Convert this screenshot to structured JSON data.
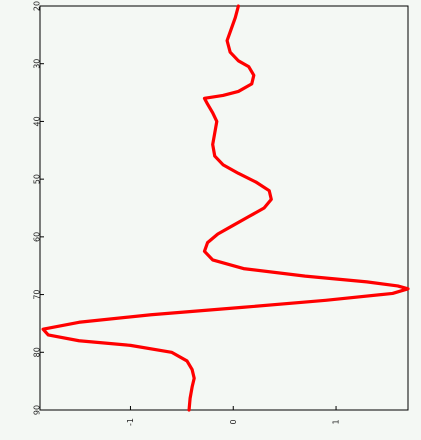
{
  "chart_data": {
    "type": "line",
    "title": "",
    "xlabel": "",
    "ylabel": "",
    "xlim": [
      -1.88,
      1.7
    ],
    "ylim": [
      20,
      90
    ],
    "y_inverted": true,
    "grid": false,
    "x_ticks": [
      -1,
      0,
      1
    ],
    "x_tick_labels": [
      "-1",
      "0",
      "1"
    ],
    "y_ticks": [
      20,
      30,
      40,
      50,
      60,
      70,
      80,
      90
    ],
    "y_tick_labels": [
      "20",
      "30",
      "40",
      "50",
      "60",
      "70",
      "80",
      "90"
    ],
    "series": [
      {
        "color": "#ff0000",
        "x": [
          0.05,
          0.02,
          -0.02,
          -0.06,
          -0.03,
          0.05,
          0.15,
          0.2,
          0.18,
          0.05,
          -0.1,
          -0.28,
          -0.25,
          -0.2,
          -0.16,
          -0.18,
          -0.2,
          -0.18,
          -0.1,
          0.05,
          0.22,
          0.35,
          0.37,
          0.3,
          0.15,
          0.0,
          -0.15,
          -0.25,
          -0.28,
          -0.2,
          0.1,
          0.7,
          1.3,
          1.6,
          1.7,
          1.55,
          0.9,
          0.1,
          -0.8,
          -1.5,
          -1.85,
          -1.8,
          -1.5,
          -1.0,
          -0.6,
          -0.45,
          -0.4,
          -0.38,
          -0.4,
          -0.42,
          -0.43
        ],
        "y": [
          20.0,
          22.0,
          24.0,
          26.0,
          28.0,
          29.5,
          30.5,
          32.0,
          33.5,
          34.8,
          35.5,
          36.0,
          37.0,
          38.5,
          40.0,
          42.0,
          44.0,
          46.0,
          47.5,
          49.0,
          50.5,
          52.0,
          53.5,
          55.0,
          56.5,
          58.0,
          59.5,
          61.0,
          62.5,
          64.0,
          65.5,
          66.8,
          67.8,
          68.5,
          69.0,
          69.8,
          71.0,
          72.2,
          73.5,
          74.8,
          76.0,
          77.0,
          78.0,
          78.8,
          80.0,
          81.5,
          83.0,
          84.5,
          86.0,
          88.0,
          90.0
        ]
      }
    ]
  }
}
